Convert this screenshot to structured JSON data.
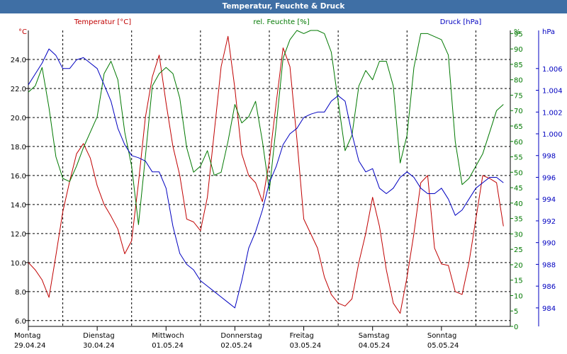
{
  "title": "Temperatur, Feuchte & Druck",
  "colors": {
    "title_bg": "#3f6fa5",
    "temperature": "#c00000",
    "humidity": "#007800",
    "pressure": "#0000c0",
    "grid": "#000000"
  },
  "chart_data": {
    "type": "line",
    "grid": true,
    "x_range": [
      0,
      7
    ],
    "x_labels": [
      {
        "day": "Montag",
        "date": "29.04.24"
      },
      {
        "day": "Dienstag",
        "date": "30.04.24"
      },
      {
        "day": "Mittwoch",
        "date": "01.05.24"
      },
      {
        "day": "Donnerstag",
        "date": "02.05.24"
      },
      {
        "day": "Freitag",
        "date": "03.05.24"
      },
      {
        "day": "Samstag",
        "date": "04.05.24"
      },
      {
        "day": "Sonntag",
        "date": "05.05.24"
      }
    ],
    "axes": {
      "temperature": {
        "label": "Temperatur [°C]",
        "unit": "°C",
        "range": [
          5.6,
          26.0
        ],
        "ticks": [
          "6.0",
          "8.0",
          "10.0",
          "12.0",
          "14.0",
          "16.0",
          "18.0",
          "20.0",
          "22.0",
          "24.0"
        ]
      },
      "humidity": {
        "label": "rel. Feuchte [%]",
        "unit": "%",
        "range": [
          0,
          96
        ],
        "ticks": [
          "0",
          "5",
          "10",
          "15",
          "20",
          "25",
          "30",
          "35",
          "40",
          "45",
          "50",
          "55",
          "60",
          "65",
          "70",
          "75",
          "80",
          "85",
          "90",
          "95"
        ]
      },
      "pressure": {
        "label": "Druck [hPa]",
        "unit": "hPa",
        "range": [
          982.3,
          1009.5
        ],
        "ticks": [
          "984",
          "986",
          "988",
          "990",
          "992",
          "994",
          "996",
          "998",
          "1.000",
          "1.002",
          "1.004",
          "1.006"
        ]
      }
    },
    "series": [
      {
        "name": "Temperatur [°C]",
        "axis": "temperature",
        "x": [
          0,
          0.1,
          0.2,
          0.3,
          0.4,
          0.5,
          0.6,
          0.7,
          0.8,
          0.9,
          1.0,
          1.1,
          1.2,
          1.3,
          1.4,
          1.5,
          1.6,
          1.7,
          1.8,
          1.9,
          2.0,
          2.1,
          2.2,
          2.3,
          2.4,
          2.5,
          2.6,
          2.7,
          2.8,
          2.9,
          3.0,
          3.1,
          3.2,
          3.3,
          3.4,
          3.5,
          3.6,
          3.7,
          3.8,
          3.9,
          4.0,
          4.1,
          4.2,
          4.3,
          4.4,
          4.5,
          4.6,
          4.7,
          4.8,
          4.9,
          5.0,
          5.1,
          5.2,
          5.3,
          5.4,
          5.5,
          5.6,
          5.7,
          5.8,
          5.9,
          6.0,
          6.1,
          6.2,
          6.3,
          6.4,
          6.5,
          6.6,
          6.7,
          6.8,
          6.9
        ],
        "y": [
          10.0,
          9.5,
          8.8,
          7.6,
          10.5,
          13.5,
          15.6,
          17.5,
          18.2,
          17.2,
          15.3,
          14.0,
          13.2,
          12.3,
          10.6,
          11.5,
          15.5,
          20.0,
          22.8,
          24.3,
          21.0,
          18.0,
          16.0,
          13.0,
          12.8,
          12.2,
          14.5,
          19.0,
          23.5,
          25.6,
          22.0,
          17.5,
          16.0,
          15.5,
          14.2,
          17.0,
          21.0,
          24.8,
          23.5,
          18.5,
          13.0,
          12.0,
          11.0,
          9.0,
          7.8,
          7.2,
          7.0,
          7.5,
          10.0,
          12.0,
          14.5,
          12.5,
          9.5,
          7.2,
          6.5,
          9.0,
          12.0,
          15.5,
          16.0,
          11.0,
          9.9,
          9.8,
          8.0,
          7.8,
          10.0,
          13.0,
          16.0,
          15.8,
          15.5,
          12.5
        ]
      },
      {
        "name": "rel. Feuchte [%]",
        "axis": "humidity",
        "x": [
          0,
          0.1,
          0.2,
          0.3,
          0.4,
          0.5,
          0.6,
          0.7,
          0.8,
          0.9,
          1.0,
          1.1,
          1.2,
          1.3,
          1.4,
          1.5,
          1.6,
          1.7,
          1.8,
          1.9,
          2.0,
          2.1,
          2.2,
          2.3,
          2.4,
          2.5,
          2.6,
          2.7,
          2.8,
          2.9,
          3.0,
          3.1,
          3.2,
          3.3,
          3.4,
          3.5,
          3.6,
          3.7,
          3.8,
          3.9,
          4.0,
          4.1,
          4.2,
          4.3,
          4.4,
          4.5,
          4.6,
          4.7,
          4.8,
          4.9,
          5.0,
          5.1,
          5.2,
          5.3,
          5.4,
          5.5,
          5.6,
          5.7,
          5.8,
          5.9,
          6.0,
          6.1,
          6.2,
          6.3,
          6.4,
          6.5,
          6.6,
          6.7,
          6.8,
          6.9
        ],
        "y": [
          76,
          78,
          84,
          71,
          55,
          48,
          47,
          52,
          58,
          63,
          68,
          82,
          86,
          80,
          63,
          52,
          33,
          55,
          78,
          82,
          84,
          82,
          74,
          58,
          50,
          52,
          57,
          49,
          50,
          60,
          72,
          66,
          68,
          73,
          60,
          44,
          65,
          87,
          93,
          96,
          95,
          96,
          96,
          95,
          89,
          73,
          57,
          62,
          78,
          83,
          80,
          86,
          86,
          78,
          53,
          62,
          84,
          95,
          95,
          94,
          93,
          88,
          60,
          46,
          48,
          52,
          56,
          63,
          70,
          72
        ]
      },
      {
        "name": "Druck [hPa]",
        "axis": "pressure",
        "x": [
          0,
          0.1,
          0.2,
          0.3,
          0.4,
          0.5,
          0.6,
          0.7,
          0.8,
          0.9,
          1.0,
          1.1,
          1.2,
          1.3,
          1.4,
          1.5,
          1.6,
          1.7,
          1.8,
          1.9,
          2.0,
          2.1,
          2.2,
          2.3,
          2.4,
          2.5,
          2.6,
          2.7,
          2.8,
          2.9,
          3.0,
          3.1,
          3.2,
          3.3,
          3.4,
          3.5,
          3.6,
          3.7,
          3.8,
          3.9,
          4.0,
          4.1,
          4.2,
          4.3,
          4.4,
          4.5,
          4.6,
          4.7,
          4.8,
          4.9,
          5.0,
          5.1,
          5.2,
          5.3,
          5.4,
          5.5,
          5.6,
          5.7,
          5.8,
          5.9,
          6.0,
          6.1,
          6.2,
          6.3,
          6.4,
          6.5,
          6.6,
          6.7,
          6.8,
          6.9
        ],
        "y": [
          1004.5,
          1005.5,
          1006.5,
          1007.8,
          1007.2,
          1006.0,
          1006.0,
          1006.8,
          1007.0,
          1006.5,
          1006.0,
          1004.5,
          1003.0,
          1000.5,
          999.0,
          998.0,
          997.8,
          997.5,
          996.5,
          996.5,
          995.0,
          991.5,
          989.0,
          988.0,
          987.5,
          986.5,
          986.0,
          985.5,
          985.0,
          984.5,
          984.0,
          986.5,
          989.5,
          991.0,
          993.0,
          995.5,
          997.0,
          999.0,
          1000.0,
          1000.5,
          1001.5,
          1001.8,
          1002.0,
          1002.0,
          1003.0,
          1003.5,
          1003.0,
          1000.0,
          997.5,
          996.5,
          996.8,
          995.0,
          994.5,
          995.0,
          996.0,
          996.5,
          996.0,
          995.0,
          994.5,
          994.5,
          995.0,
          994.0,
          992.5,
          993.0,
          994.0,
          995.0,
          995.5,
          996.0,
          996.0,
          995.5
        ]
      }
    ]
  }
}
